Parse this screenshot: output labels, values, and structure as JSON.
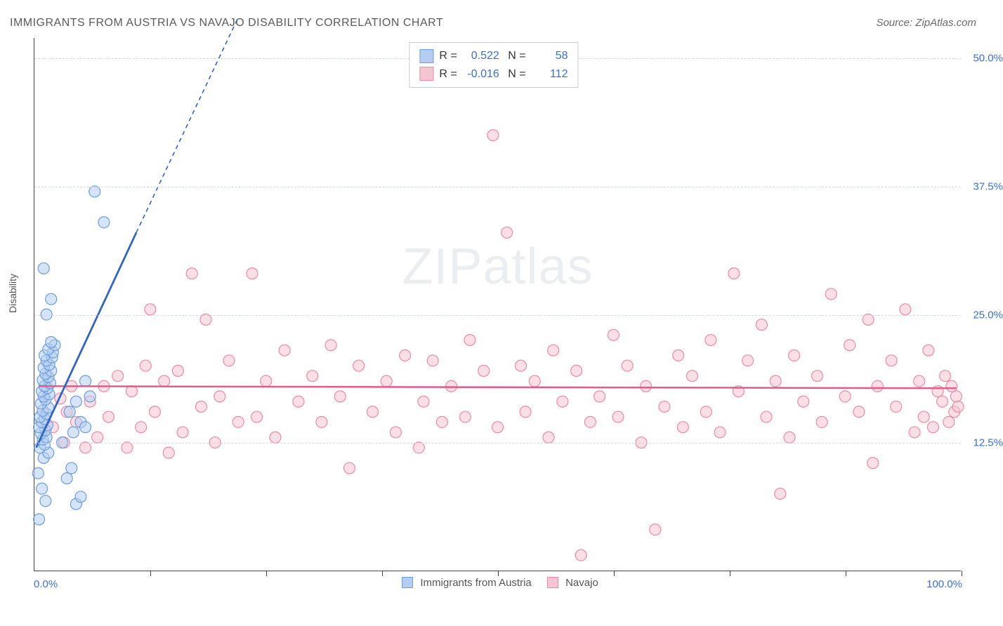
{
  "title": "IMMIGRANTS FROM AUSTRIA VS NAVAJO DISABILITY CORRELATION CHART",
  "source": "Source: ZipAtlas.com",
  "watermark_a": "ZIP",
  "watermark_b": "atlas",
  "y_label": "Disability",
  "chart": {
    "type": "scatter",
    "xlim": [
      0,
      100
    ],
    "ylim": [
      0,
      52
    ],
    "x_min_label": "0.0%",
    "x_max_label": "100.0%",
    "y_ticks": [
      12.5,
      25.0,
      37.5,
      50.0
    ],
    "y_tick_labels": [
      "12.5%",
      "25.0%",
      "37.5%",
      "50.0%"
    ],
    "x_tick_positions": [
      12.5,
      25.0,
      37.5,
      50.0,
      62.5,
      75.0,
      87.5,
      100.0
    ],
    "grid_color": "#d0d8e0",
    "background_color": "#ffffff",
    "axis_color": "#444444",
    "marker_radius": 8,
    "marker_opacity": 0.55,
    "series": [
      {
        "name": "Immigrants from Austria",
        "color_fill": "#b5cdf0",
        "color_stroke": "#6b9de0",
        "trend_color": "#2f66c4",
        "r": "0.522",
        "n": "58",
        "trend": {
          "x1": 0.2,
          "y1": 12.0,
          "x2": 11.0,
          "y2": 33.0,
          "extrap_x2": 22.0,
          "extrap_y2": 54.0
        },
        "points": [
          [
            0.5,
            5.0
          ],
          [
            1.2,
            6.8
          ],
          [
            0.8,
            8.0
          ],
          [
            0.4,
            9.5
          ],
          [
            1.0,
            11.0
          ],
          [
            1.5,
            11.5
          ],
          [
            0.6,
            12.0
          ],
          [
            1.1,
            12.3
          ],
          [
            0.9,
            12.8
          ],
          [
            1.3,
            13.0
          ],
          [
            0.7,
            13.4
          ],
          [
            1.2,
            13.7
          ],
          [
            0.5,
            14.0
          ],
          [
            1.4,
            14.2
          ],
          [
            0.8,
            14.5
          ],
          [
            1.1,
            14.8
          ],
          [
            0.6,
            15.0
          ],
          [
            1.3,
            15.3
          ],
          [
            0.9,
            15.6
          ],
          [
            1.5,
            15.9
          ],
          [
            0.7,
            16.3
          ],
          [
            1.2,
            16.7
          ],
          [
            1.0,
            17.0
          ],
          [
            1.6,
            17.2
          ],
          [
            0.8,
            17.5
          ],
          [
            1.4,
            17.8
          ],
          [
            1.1,
            18.0
          ],
          [
            1.7,
            18.3
          ],
          [
            0.9,
            18.6
          ],
          [
            1.5,
            18.9
          ],
          [
            1.2,
            19.2
          ],
          [
            1.8,
            19.5
          ],
          [
            1.0,
            19.8
          ],
          [
            1.6,
            20.1
          ],
          [
            1.3,
            20.5
          ],
          [
            1.9,
            20.8
          ],
          [
            1.1,
            21.0
          ],
          [
            2.0,
            21.3
          ],
          [
            1.5,
            21.6
          ],
          [
            2.2,
            22.0
          ],
          [
            1.8,
            22.3
          ],
          [
            1.3,
            25.0
          ],
          [
            1.8,
            26.5
          ],
          [
            1.0,
            29.5
          ],
          [
            4.5,
            6.5
          ],
          [
            5.0,
            7.2
          ],
          [
            3.5,
            9.0
          ],
          [
            4.0,
            10.0
          ],
          [
            3.0,
            12.5
          ],
          [
            4.2,
            13.5
          ],
          [
            5.0,
            14.5
          ],
          [
            3.8,
            15.5
          ],
          [
            4.5,
            16.5
          ],
          [
            6.0,
            17.0
          ],
          [
            5.5,
            18.5
          ],
          [
            6.5,
            37.0
          ],
          [
            7.5,
            34.0
          ],
          [
            5.5,
            14.0
          ]
        ]
      },
      {
        "name": "Navajo",
        "color_fill": "#f6c5d3",
        "color_stroke": "#ec8aa6",
        "trend_color": "#e65a8b",
        "r": "-0.016",
        "n": "112",
        "trend": {
          "x1": 0.5,
          "y1": 18.0,
          "x2": 99.5,
          "y2": 17.8
        },
        "points": [
          [
            2.0,
            14.0
          ],
          [
            3.5,
            15.5
          ],
          [
            2.8,
            16.8
          ],
          [
            3.2,
            12.5
          ],
          [
            4.0,
            18.0
          ],
          [
            4.5,
            14.5
          ],
          [
            5.5,
            12.0
          ],
          [
            6.0,
            16.5
          ],
          [
            6.8,
            13.0
          ],
          [
            7.5,
            18.0
          ],
          [
            8.0,
            15.0
          ],
          [
            9.0,
            19.0
          ],
          [
            10.0,
            12.0
          ],
          [
            10.5,
            17.5
          ],
          [
            11.5,
            14.0
          ],
          [
            12.0,
            20.0
          ],
          [
            12.5,
            25.5
          ],
          [
            13.0,
            15.5
          ],
          [
            14.0,
            18.5
          ],
          [
            14.5,
            11.5
          ],
          [
            15.5,
            19.5
          ],
          [
            16.0,
            13.5
          ],
          [
            17.0,
            29.0
          ],
          [
            18.0,
            16.0
          ],
          [
            18.5,
            24.5
          ],
          [
            19.5,
            12.5
          ],
          [
            20.0,
            17.0
          ],
          [
            21.0,
            20.5
          ],
          [
            22.0,
            14.5
          ],
          [
            23.5,
            29.0
          ],
          [
            24.0,
            15.0
          ],
          [
            25.0,
            18.5
          ],
          [
            26.0,
            13.0
          ],
          [
            27.0,
            21.5
          ],
          [
            28.5,
            16.5
          ],
          [
            30.0,
            19.0
          ],
          [
            31.0,
            14.5
          ],
          [
            32.0,
            22.0
          ],
          [
            33.0,
            17.0
          ],
          [
            34.0,
            10.0
          ],
          [
            35.0,
            20.0
          ],
          [
            36.5,
            15.5
          ],
          [
            38.0,
            18.5
          ],
          [
            39.0,
            13.5
          ],
          [
            40.0,
            21.0
          ],
          [
            41.5,
            12.0
          ],
          [
            42.0,
            16.5
          ],
          [
            43.0,
            20.5
          ],
          [
            44.0,
            14.5
          ],
          [
            45.0,
            18.0
          ],
          [
            46.5,
            15.0
          ],
          [
            47.0,
            22.5
          ],
          [
            48.5,
            19.5
          ],
          [
            49.5,
            42.5
          ],
          [
            50.0,
            14.0
          ],
          [
            51.0,
            33.0
          ],
          [
            52.5,
            20.0
          ],
          [
            53.0,
            15.5
          ],
          [
            54.0,
            18.5
          ],
          [
            55.5,
            13.0
          ],
          [
            56.0,
            21.5
          ],
          [
            57.0,
            16.5
          ],
          [
            59.0,
            1.5
          ],
          [
            58.5,
            19.5
          ],
          [
            60.0,
            14.5
          ],
          [
            61.0,
            17.0
          ],
          [
            62.5,
            23.0
          ],
          [
            63.0,
            15.0
          ],
          [
            64.0,
            20.0
          ],
          [
            65.5,
            12.5
          ],
          [
            66.0,
            18.0
          ],
          [
            67.0,
            4.0
          ],
          [
            68.0,
            16.0
          ],
          [
            69.5,
            21.0
          ],
          [
            70.0,
            14.0
          ],
          [
            71.0,
            19.0
          ],
          [
            72.5,
            15.5
          ],
          [
            73.0,
            22.5
          ],
          [
            74.0,
            13.5
          ],
          [
            75.5,
            29.0
          ],
          [
            76.0,
            17.5
          ],
          [
            77.0,
            20.5
          ],
          [
            78.5,
            24.0
          ],
          [
            79.0,
            15.0
          ],
          [
            80.0,
            18.5
          ],
          [
            80.5,
            7.5
          ],
          [
            81.5,
            13.0
          ],
          [
            82.0,
            21.0
          ],
          [
            83.0,
            16.5
          ],
          [
            84.5,
            19.0
          ],
          [
            85.0,
            14.5
          ],
          [
            86.0,
            27.0
          ],
          [
            87.5,
            17.0
          ],
          [
            88.0,
            22.0
          ],
          [
            89.0,
            15.5
          ],
          [
            90.0,
            24.5
          ],
          [
            90.5,
            10.5
          ],
          [
            91.0,
            18.0
          ],
          [
            92.5,
            20.5
          ],
          [
            93.0,
            16.0
          ],
          [
            94.0,
            25.5
          ],
          [
            95.0,
            13.5
          ],
          [
            95.5,
            18.5
          ],
          [
            96.0,
            15.0
          ],
          [
            96.5,
            21.5
          ],
          [
            97.0,
            14.0
          ],
          [
            97.5,
            17.5
          ],
          [
            98.0,
            16.5
          ],
          [
            98.3,
            19.0
          ],
          [
            98.7,
            14.5
          ],
          [
            99.0,
            18.0
          ],
          [
            99.3,
            15.5
          ],
          [
            99.5,
            17.0
          ],
          [
            99.7,
            16.0
          ]
        ]
      }
    ],
    "bottom_legend": [
      {
        "swatch_fill": "#b5cdf0",
        "swatch_stroke": "#6b9de0",
        "label": "Immigrants from Austria"
      },
      {
        "swatch_fill": "#f6c5d3",
        "swatch_stroke": "#ec8aa6",
        "label": "Navajo"
      }
    ]
  }
}
